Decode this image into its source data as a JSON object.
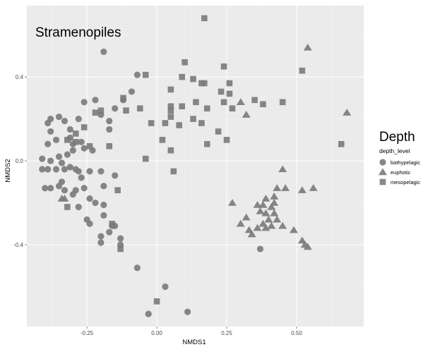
{
  "chart_data": {
    "type": "scatter",
    "title": "Stramenopiles",
    "xlabel": "NMDS1",
    "ylabel": "NMDS2",
    "xlim": [
      -0.465,
      0.74
    ],
    "ylim": [
      -0.79,
      0.74
    ],
    "xticks": [
      -0.25,
      0.0,
      0.25,
      0.5
    ],
    "xtick_labels": [
      "-0.25",
      "0.00",
      "0.25",
      "0.50"
    ],
    "yticks": [
      -0.4,
      0.0,
      0.4
    ],
    "ytick_labels": [
      "-0.4",
      "0.0",
      "0.4"
    ],
    "grid": true,
    "color": "#7a7a7a",
    "legend": {
      "heading": "Depth",
      "title": "depth_level",
      "position": "right",
      "entries": [
        "bathypelagic",
        "euphotic",
        "mesopelagic"
      ]
    },
    "series": [
      {
        "name": "bathypelagic",
        "marker": "circle",
        "points": [
          [
            -0.19,
            0.52
          ],
          [
            -0.07,
            0.41
          ],
          [
            -0.09,
            0.33
          ],
          [
            -0.12,
            0.29
          ],
          [
            -0.22,
            0.29
          ],
          [
            -0.26,
            0.28
          ],
          [
            -0.35,
            0.21
          ],
          [
            -0.33,
            0.19
          ],
          [
            -0.15,
            0.25
          ],
          [
            -0.2,
            0.22
          ],
          [
            -0.17,
            0.19
          ],
          [
            -0.17,
            0.15
          ],
          [
            -0.28,
            0.2
          ],
          [
            -0.31,
            0.15
          ],
          [
            -0.38,
            0.2
          ],
          [
            -0.39,
            0.18
          ],
          [
            -0.38,
            0.14
          ],
          [
            -0.31,
            0.11
          ],
          [
            -0.36,
            0.1
          ],
          [
            -0.39,
            0.08
          ],
          [
            -0.3,
            0.08
          ],
          [
            -0.3,
            0.05
          ],
          [
            -0.32,
            0.03
          ],
          [
            -0.27,
            0.09
          ],
          [
            -0.26,
            0.06
          ],
          [
            -0.23,
            0.05
          ],
          [
            -0.41,
            0.01
          ],
          [
            -0.38,
            0.0
          ],
          [
            -0.35,
            0.02
          ],
          [
            -0.34,
            -0.01
          ],
          [
            -0.31,
            -0.03
          ],
          [
            -0.29,
            -0.04
          ],
          [
            -0.28,
            -0.05
          ],
          [
            -0.33,
            -0.04
          ],
          [
            -0.36,
            -0.04
          ],
          [
            -0.39,
            -0.04
          ],
          [
            -0.41,
            -0.04
          ],
          [
            -0.4,
            -0.13
          ],
          [
            -0.38,
            -0.13
          ],
          [
            -0.35,
            -0.12
          ],
          [
            -0.34,
            -0.1
          ],
          [
            -0.33,
            -0.14
          ],
          [
            -0.3,
            -0.16
          ],
          [
            -0.29,
            -0.14
          ],
          [
            -0.26,
            -0.13
          ],
          [
            -0.27,
            -0.08
          ],
          [
            -0.24,
            -0.05
          ],
          [
            -0.2,
            -0.05
          ],
          [
            -0.15,
            -0.07
          ],
          [
            -0.19,
            -0.12
          ],
          [
            -0.24,
            -0.18
          ],
          [
            -0.22,
            -0.2
          ],
          [
            -0.19,
            -0.21
          ],
          [
            -0.28,
            -0.22
          ],
          [
            -0.25,
            -0.28
          ],
          [
            -0.24,
            -0.3
          ],
          [
            -0.2,
            -0.36
          ],
          [
            -0.16,
            -0.31
          ],
          [
            -0.15,
            -0.31
          ],
          [
            -0.17,
            -0.34
          ],
          [
            -0.19,
            -0.26
          ],
          [
            -0.2,
            -0.39
          ],
          [
            -0.13,
            -0.37
          ],
          [
            -0.13,
            -0.4
          ],
          [
            -0.07,
            -0.51
          ],
          [
            -0.03,
            -0.73
          ],
          [
            0.03,
            -0.6
          ],
          [
            0.11,
            -0.72
          ],
          [
            0.37,
            -0.42
          ]
        ]
      },
      {
        "name": "euphotic",
        "marker": "triangle",
        "points": [
          [
            0.54,
            0.54
          ],
          [
            0.68,
            0.23
          ],
          [
            0.3,
            0.28
          ],
          [
            0.32,
            0.22
          ],
          [
            0.45,
            -0.04
          ],
          [
            0.56,
            -0.13
          ],
          [
            0.52,
            -0.14
          ],
          [
            0.46,
            -0.13
          ],
          [
            0.43,
            -0.13
          ],
          [
            0.42,
            -0.17
          ],
          [
            0.42,
            -0.2
          ],
          [
            0.39,
            -0.18
          ],
          [
            0.38,
            -0.21
          ],
          [
            0.41,
            -0.22
          ],
          [
            0.42,
            -0.25
          ],
          [
            0.39,
            -0.25
          ],
          [
            0.43,
            -0.28
          ],
          [
            0.4,
            -0.28
          ],
          [
            0.38,
            -0.3
          ],
          [
            0.36,
            -0.21
          ],
          [
            0.37,
            -0.24
          ],
          [
            0.32,
            -0.27
          ],
          [
            0.3,
            -0.3
          ],
          [
            0.33,
            -0.33
          ],
          [
            0.34,
            -0.35
          ],
          [
            0.36,
            -0.32
          ],
          [
            0.39,
            -0.32
          ],
          [
            0.41,
            -0.31
          ],
          [
            0.45,
            -0.31
          ],
          [
            0.49,
            -0.33
          ],
          [
            0.53,
            -0.4
          ],
          [
            0.54,
            -0.41
          ],
          [
            0.27,
            -0.2
          ],
          [
            0.52,
            -0.38
          ],
          [
            -0.33,
            -0.18
          ],
          [
            -0.34,
            -0.18
          ]
        ]
      },
      {
        "name": "mesopelagic",
        "marker": "square",
        "points": [
          [
            0.17,
            0.68
          ],
          [
            0.1,
            0.47
          ],
          [
            0.24,
            0.45
          ],
          [
            -0.04,
            0.41
          ],
          [
            0.09,
            0.4
          ],
          [
            0.13,
            0.39
          ],
          [
            0.16,
            0.37
          ],
          [
            0.17,
            0.37
          ],
          [
            0.26,
            0.37
          ],
          [
            0.05,
            0.34
          ],
          [
            0.23,
            0.33
          ],
          [
            0.26,
            0.32
          ],
          [
            0.52,
            0.43
          ],
          [
            0.35,
            0.29
          ],
          [
            0.38,
            0.27
          ],
          [
            0.45,
            0.28
          ],
          [
            -0.12,
            0.3
          ],
          [
            -0.22,
            0.23
          ],
          [
            -0.2,
            0.24
          ],
          [
            -0.06,
            0.25
          ],
          [
            -0.11,
            0.24
          ],
          [
            0.05,
            0.24
          ],
          [
            0.05,
            0.26
          ],
          [
            0.09,
            0.26
          ],
          [
            0.14,
            0.28
          ],
          [
            0.18,
            0.25
          ],
          [
            0.24,
            0.28
          ],
          [
            0.27,
            0.25
          ],
          [
            0.05,
            0.21
          ],
          [
            0.03,
            0.18
          ],
          [
            -0.02,
            0.18
          ],
          [
            0.08,
            0.17
          ],
          [
            0.13,
            0.2
          ],
          [
            0.16,
            0.18
          ],
          [
            0.22,
            0.14
          ],
          [
            0.25,
            0.1
          ],
          [
            0.02,
            0.1
          ],
          [
            0.05,
            0.05
          ],
          [
            -0.04,
            0.01
          ],
          [
            -0.26,
            0.16
          ],
          [
            -0.24,
            0.07
          ],
          [
            -0.29,
            0.13
          ],
          [
            -0.29,
            0.09
          ],
          [
            -0.17,
            0.07
          ],
          [
            -0.32,
            0.1
          ],
          [
            0.06,
            -0.05
          ],
          [
            0.18,
            0.08
          ],
          [
            0.66,
            0.08
          ],
          [
            -0.14,
            -0.14
          ],
          [
            -0.32,
            -0.22
          ],
          [
            -0.16,
            -0.3
          ],
          [
            -0.13,
            -0.42
          ],
          [
            0.0,
            -0.67
          ]
        ]
      }
    ]
  }
}
